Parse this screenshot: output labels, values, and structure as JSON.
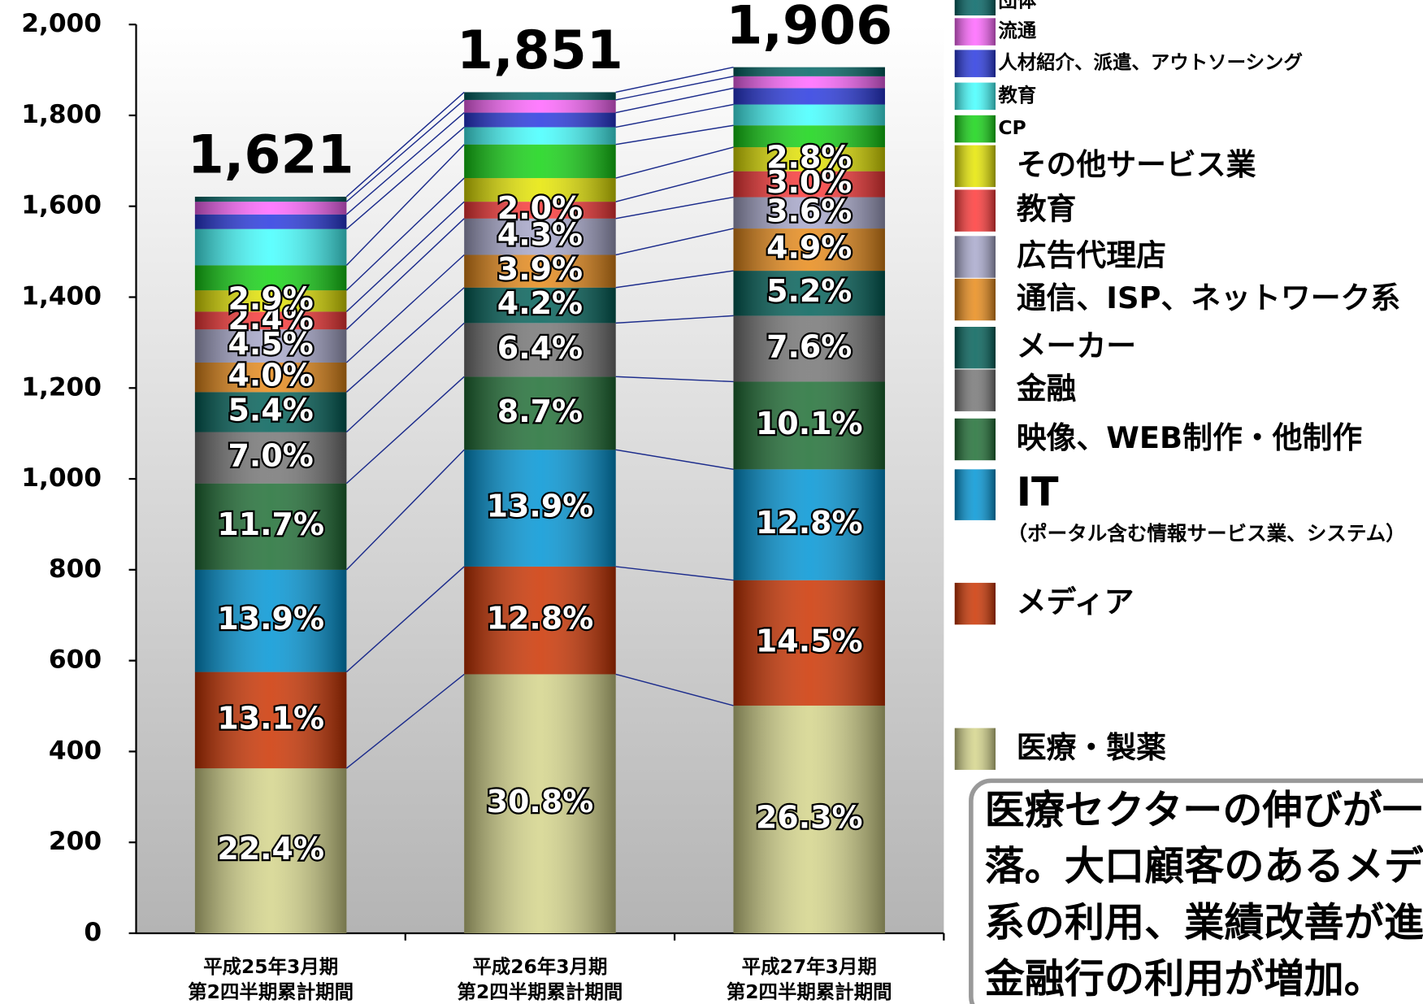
{
  "chart_data": {
    "type": "stacked_bar",
    "categories": [
      [
        "平成25年3月期",
        "第2四半期累計期間"
      ],
      [
        "平成26年3月期",
        "第2四半期累計期間"
      ],
      [
        "平成27年3月期",
        "第2四半期累計期間"
      ]
    ],
    "totals": [
      {
        "value": 1621,
        "label": "1,621"
      },
      {
        "value": 1851,
        "label": "1,851"
      },
      {
        "value": 1906,
        "label": "1,906"
      }
    ],
    "ylim": [
      0,
      2000
    ],
    "yticks": [
      0,
      200,
      400,
      600,
      800,
      {
        "value": 1000,
        "label": "1,000"
      },
      {
        "value": 1200,
        "label": "1,200"
      },
      {
        "value": 1400,
        "label": "1,400"
      },
      {
        "value": 1600,
        "label": "1,600"
      },
      {
        "value": 1800,
        "label": "1,800"
      },
      {
        "value": 2000,
        "label": "2,000"
      }
    ],
    "series": [
      {
        "name": "医療・製薬",
        "color": "#d4d48a",
        "values": [
          363,
          570,
          501
        ],
        "share_labels": [
          "22.4%",
          "30.8%",
          "26.3%"
        ]
      },
      {
        "name": "メディア",
        "color": "#cc3300",
        "values": [
          212,
          237,
          276
        ],
        "share_labels": [
          "13.1%",
          "12.8%",
          "14.5%"
        ]
      },
      {
        "name": "IT",
        "note": "（ポータル含む情報サービス業、システム）",
        "color": "#0095d5",
        "values": [
          225,
          257,
          244
        ],
        "share_labels": [
          "13.9%",
          "13.9%",
          "12.8%"
        ]
      },
      {
        "name": "映像、WEB制作・他制作",
        "color": "#1e6e34",
        "values": [
          190,
          161,
          193
        ],
        "share_labels": [
          "11.7%",
          "8.7%",
          "10.1%"
        ]
      },
      {
        "name": "金融",
        "color": "#767676",
        "values": [
          113,
          118,
          145
        ],
        "share_labels": [
          "7.0%",
          "6.4%",
          "7.6%"
        ]
      },
      {
        "name": "メーカー",
        "color": "#006058",
        "values": [
          88,
          78,
          99
        ],
        "share_labels": [
          "5.4%",
          "4.2%",
          "5.2%"
        ]
      },
      {
        "name": "通信、ISP、ネットワーク系",
        "color": "#e88a18",
        "values": [
          65,
          72,
          93
        ],
        "share_labels": [
          "4.0%",
          "3.9%",
          "4.9%"
        ]
      },
      {
        "name": "広告代理店",
        "color": "#a8a8cc",
        "values": [
          73,
          80,
          69
        ],
        "share_labels": [
          "4.5%",
          "4.3%",
          "3.6%"
        ]
      },
      {
        "name": "教育",
        "color": "#ff3838",
        "values": [
          39,
          37,
          57
        ],
        "share_labels": [
          "2.4%",
          "2.0%",
          "3.0%"
        ]
      },
      {
        "name": "その他サービス業",
        "color": "#e6e600",
        "values": [
          47,
          52,
          53
        ],
        "share_labels": [
          "2.9%",
          null,
          "2.8%"
        ]
      },
      {
        "name": "CP",
        "color": "#14d414",
        "values": [
          55,
          74,
          48
        ]
      },
      {
        "name": "教育",
        "color": "#44ffff",
        "values": [
          80,
          38,
          46
        ]
      },
      {
        "name": "人材紹介、派遣、アウトソーシング",
        "color": "#2838e0",
        "values": [
          32,
          32,
          36
        ]
      },
      {
        "name": "流通",
        "color": "#ff66ff",
        "values": [
          28,
          28,
          26
        ]
      },
      {
        "name": "団体",
        "color": "#006464",
        "values": [
          11,
          17,
          20
        ]
      }
    ],
    "annotation_lines": [
      "医療セクターの伸びが一",
      "落。大口顧客のあるメデ",
      "系の利用、業績改善が進",
      "金融行の利用が増加。"
    ]
  }
}
